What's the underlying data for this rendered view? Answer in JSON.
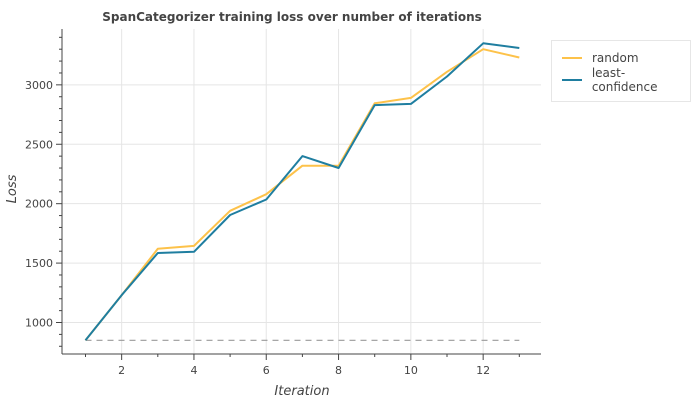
{
  "chart_data": {
    "type": "line",
    "title": "SpanCategorizer training loss over number of iterations",
    "xlabel": "Iteration",
    "ylabel": "Loss",
    "xlim": [
      0.35,
      13.6
    ],
    "ylim": [
      735,
      3470
    ],
    "x_ticks": [
      2,
      4,
      6,
      8,
      10,
      12
    ],
    "y_ticks": [
      1000,
      1500,
      2000,
      2500,
      3000
    ],
    "grid": true,
    "legend_position": "top-right, outside plot",
    "baseline": {
      "y": 850,
      "style": "dashed",
      "color": "#999999"
    },
    "series": [
      {
        "name": "random",
        "color": "#fdc24a",
        "x": [
          1,
          2,
          3,
          4,
          5,
          6,
          7,
          8,
          9,
          10,
          11,
          12,
          13
        ],
        "y": [
          850,
          1230,
          1620,
          1645,
          1940,
          2080,
          2320,
          2320,
          2845,
          2890,
          3110,
          3300,
          3230
        ]
      },
      {
        "name": "least-confidence",
        "color": "#1f7ea0",
        "x": [
          1,
          2,
          3,
          4,
          5,
          6,
          7,
          8,
          9,
          10,
          11,
          12,
          13
        ],
        "y": [
          850,
          1230,
          1585,
          1595,
          1905,
          2035,
          2400,
          2300,
          2830,
          2840,
          3070,
          3350,
          3310
        ]
      }
    ]
  }
}
